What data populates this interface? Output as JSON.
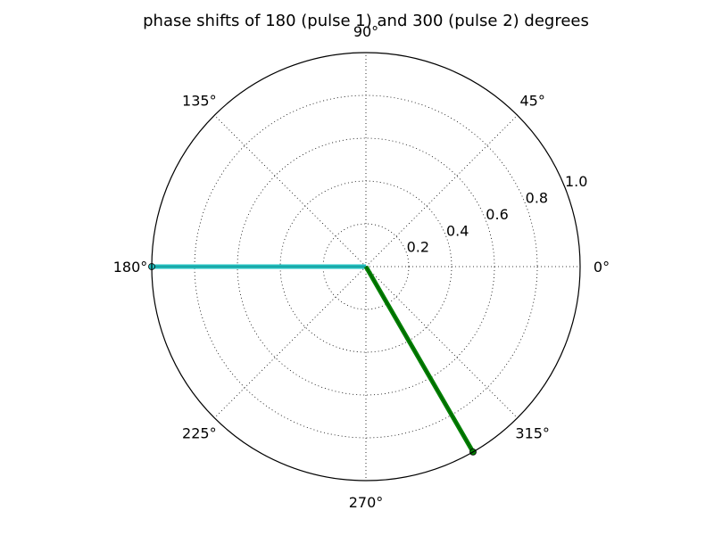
{
  "chart_data": {
    "type": "polar",
    "title": "phase shifts of 180 (pulse 1) and 300 (pulse 2) degrees",
    "angle_unit": "degrees",
    "angle_ticks": [
      "0°",
      "45°",
      "90°",
      "135°",
      "180°",
      "225°",
      "270°",
      "315°"
    ],
    "angle_tick_values": [
      0,
      45,
      90,
      135,
      180,
      225,
      270,
      315
    ],
    "radial_ticks": [
      "0.2",
      "0.4",
      "0.6",
      "0.8",
      "1.0"
    ],
    "radial_tick_values": [
      0.2,
      0.4,
      0.6,
      0.8,
      1.0
    ],
    "rlim": [
      0,
      1.0
    ],
    "grid": true,
    "series": [
      {
        "angle": 180,
        "r": 1.0,
        "color": "#20c0c0"
      },
      {
        "angle": 300,
        "r": 1.0,
        "color": "#008000"
      }
    ]
  }
}
